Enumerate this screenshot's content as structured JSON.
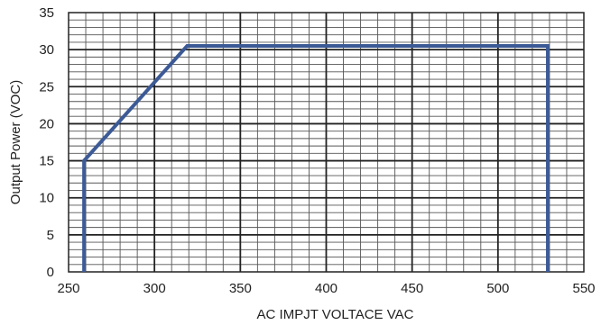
{
  "chart_data": {
    "type": "line",
    "title": "",
    "xlabel": "AC IMPJT VOLTACE VAC",
    "ylabel": "Output Power (VOC)",
    "xlim": [
      250,
      550
    ],
    "ylim": [
      0,
      35
    ],
    "x_ticks": [
      250,
      300,
      350,
      400,
      450,
      500,
      550
    ],
    "y_ticks": [
      0,
      5,
      10,
      15,
      20,
      25,
      30,
      35
    ],
    "grid": true,
    "legend": "none",
    "series": [
      {
        "x": [
          259,
          259,
          319,
          529,
          529
        ],
        "y": [
          0,
          15,
          30.5,
          30.5,
          0
        ],
        "color": "#3c5a96"
      }
    ]
  }
}
